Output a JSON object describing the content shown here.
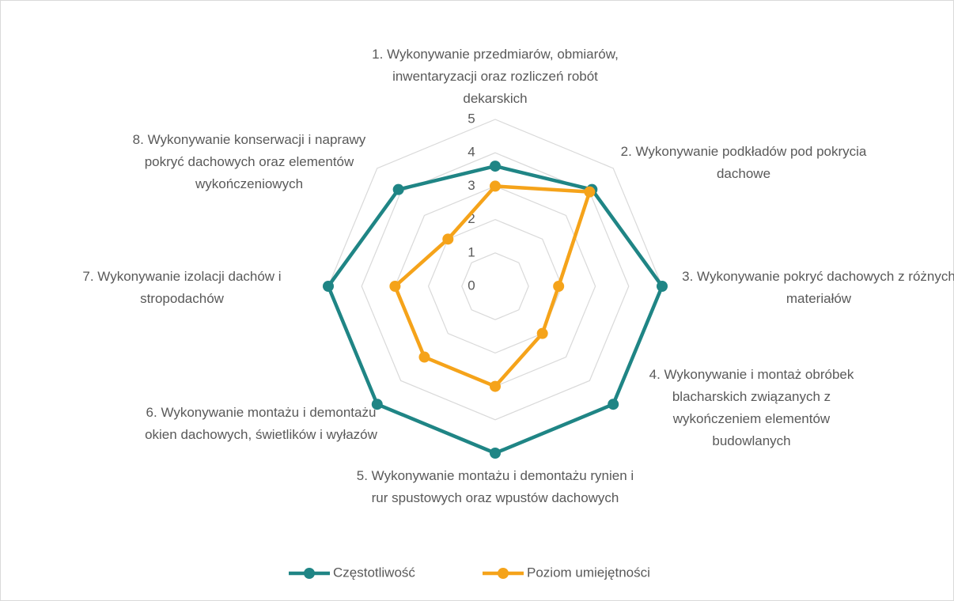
{
  "chart_data": {
    "type": "radar",
    "categories": [
      "1. Wykonywanie przedmiarów, obmiarów, inwentaryzacji oraz rozliczeń robót dekarskich",
      "2. Wykonywanie podkładów pod pokrycia dachowe",
      "3. Wykonywanie pokryć dachowych z różnych materiałów",
      "4. Wykonywanie i montaż obróbek blacharskich związanych z wykończeniem elementów budowlanych",
      "5. Wykonywanie montażu i demontażu rynien i rur spustowych oraz wpustów dachowych",
      "6. Wykonywanie montażu i demontażu okien dachowych, świetlików i wyłazów",
      "7. Wykonywanie izolacji dachów i stropodachów",
      "8. Wykonywanie konserwacji i naprawy pokryć dachowych oraz elementów wykończeniowych"
    ],
    "series": [
      {
        "name": "Częstotliwość",
        "color": "#1f8585",
        "values": [
          3.6,
          4.1,
          5,
          5,
          5,
          5,
          5,
          4.1
        ]
      },
      {
        "name": "Poziom  umiejętności",
        "color": "#f5a31a",
        "values": [
          3,
          4,
          1.9,
          2,
          3,
          3,
          3,
          2
        ]
      }
    ],
    "rlim": [
      0,
      5
    ],
    "rticks": [
      0,
      1,
      2,
      3,
      4,
      5
    ],
    "grid": true,
    "legend": "bottom"
  }
}
